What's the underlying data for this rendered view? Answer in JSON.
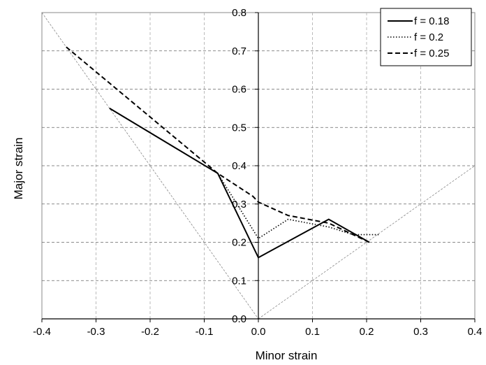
{
  "chart_data": {
    "type": "line",
    "title": "",
    "xlabel": "Minor strain",
    "ylabel": "Major strain",
    "xlim": [
      -0.4,
      0.4
    ],
    "ylim": [
      0.0,
      0.8
    ],
    "x_ticks": [
      "-0.4",
      "-0.3",
      "-0.2",
      "-0.1",
      "0.0",
      "0.1",
      "0.2",
      "0.3",
      "0.4"
    ],
    "y_ticks": [
      "0.0",
      "0.1",
      "0.2",
      "0.3",
      "0.4",
      "0.5",
      "0.6",
      "0.7",
      "0.8"
    ],
    "grid": true,
    "legend_position": "top-right",
    "series": [
      {
        "name": "f = 0.18",
        "style": "solid",
        "points": [
          [
            -0.275,
            0.55
          ],
          [
            -0.075,
            0.38
          ],
          [
            0.0,
            0.16
          ],
          [
            0.13,
            0.26
          ],
          [
            0.205,
            0.2
          ]
        ]
      },
      {
        "name": "f = 0.2",
        "style": "dotted",
        "points": [
          [
            -0.275,
            0.55
          ],
          [
            -0.075,
            0.38
          ],
          [
            0.0,
            0.21
          ],
          [
            0.055,
            0.26
          ],
          [
            0.13,
            0.24
          ],
          [
            0.175,
            0.22
          ],
          [
            0.225,
            0.22
          ]
        ]
      },
      {
        "name": "f = 0.25",
        "style": "dashed",
        "points": [
          [
            -0.355,
            0.71
          ],
          [
            -0.075,
            0.38
          ],
          [
            -0.01,
            0.32
          ],
          [
            0.0,
            0.305
          ],
          [
            0.055,
            0.27
          ],
          [
            0.13,
            0.25
          ],
          [
            0.205,
            0.2
          ]
        ]
      }
    ],
    "reference_lines": [
      {
        "style": "thin-dashed",
        "points": [
          [
            -0.4,
            0.8
          ],
          [
            0.0,
            0.0
          ]
        ]
      },
      {
        "style": "thin-dashed",
        "points": [
          [
            0.0,
            0.0
          ],
          [
            0.4,
            0.4
          ]
        ]
      }
    ]
  }
}
